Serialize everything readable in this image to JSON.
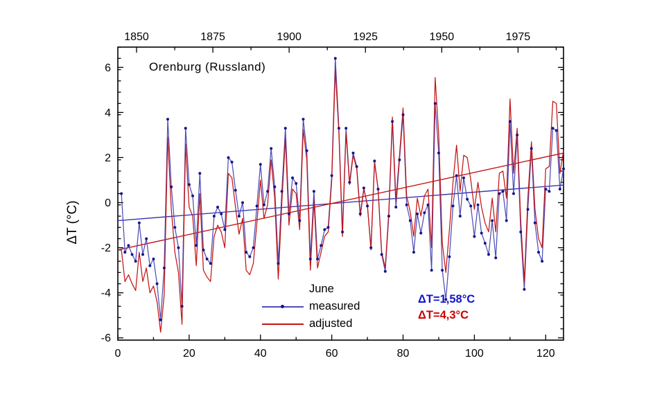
{
  "chart_data": {
    "type": "line",
    "title": "Orenburg (Russland)",
    "ylabel": "ΔT (°C)",
    "xlim": [
      0,
      125
    ],
    "ylim": [
      -6.1,
      6.9
    ],
    "grid": false,
    "x_ticks": [
      0,
      20,
      40,
      60,
      80,
      100,
      120
    ],
    "x_minor_step": 10,
    "y_ticks": [
      -6,
      -4,
      -2,
      0,
      2,
      4,
      6
    ],
    "y_major_step": 2,
    "y_minor_step": 0.5,
    "top_axis": {
      "label_years": [
        1850,
        1875,
        1900,
        1925,
        1950,
        1975
      ],
      "minor_step_years": 12.5,
      "index_of_1850": 5.25,
      "indices_per_year": 0.856
    },
    "x_start": 1,
    "series": [
      {
        "name": "measured",
        "color": "#4d4db8",
        "dot_color": "#15158c",
        "show_dots": true,
        "values": [
          0.4,
          -2.2,
          -1.9,
          -2.3,
          -2.6,
          -0.9,
          -2.3,
          -1.6,
          -2.8,
          -2.5,
          -3.6,
          -5.2,
          -2.9,
          3.7,
          0.7,
          -1.1,
          -2.0,
          -4.6,
          3.3,
          0.8,
          0.3,
          -1.9,
          1.3,
          -2.1,
          -2.5,
          -2.7,
          -0.6,
          -0.2,
          -0.5,
          -1.2,
          2.0,
          1.8,
          0.55,
          -0.6,
          0.0,
          -2.2,
          -2.4,
          -2.0,
          -0.15,
          1.7,
          -0.1,
          0.5,
          2.4,
          0.7,
          -2.7,
          0.5,
          3.3,
          -0.5,
          1.1,
          0.85,
          -0.8,
          3.7,
          2.3,
          -2.5,
          0.5,
          -2.5,
          -1.9,
          -1.2,
          -1.1,
          1.2,
          6.4,
          3.3,
          -1.3,
          3.3,
          0.9,
          2.2,
          1.6,
          -0.5,
          0.65,
          -0.15,
          -2.0,
          1.85,
          0.6,
          -2.3,
          -3.05,
          -0.6,
          3.6,
          -0.2,
          1.9,
          3.9,
          -0.1,
          -0.8,
          -2.2,
          -0.5,
          -1.35,
          -0.45,
          -0.1,
          -3.0,
          4.4,
          2.2,
          -3.0,
          -4.3,
          -2.4,
          -0.15,
          1.2,
          -0.6,
          1.1,
          0.15,
          -0.15,
          -1.5,
          -0.1,
          -1.35,
          -1.8,
          -2.3,
          -0.8,
          -2.45,
          0.4,
          0.5,
          -0.8,
          3.6,
          0.4,
          3.0,
          -1.3,
          -3.85,
          -0.3,
          2.4,
          -0.9,
          -2.2,
          -2.6,
          0.6,
          0.5,
          3.3,
          3.2,
          0.6,
          1.5
        ]
      },
      {
        "name": "adjusted",
        "color": "#c41414",
        "show_dots": false,
        "values": [
          -2.1,
          -3.5,
          -3.2,
          -3.6,
          -3.9,
          -2.2,
          -3.5,
          -2.9,
          -4.0,
          -3.7,
          -4.4,
          -5.75,
          -4.1,
          2.9,
          -0.3,
          -2.2,
          -3.1,
          -5.4,
          2.6,
          -0.2,
          -0.6,
          -2.8,
          0.4,
          -3.0,
          -3.3,
          -3.5,
          -1.5,
          -1.0,
          -1.3,
          -2.0,
          1.3,
          1.1,
          -0.2,
          -1.4,
          -0.7,
          -3.0,
          -3.2,
          -2.7,
          -0.9,
          1.0,
          -0.7,
          -0.1,
          1.9,
          0.2,
          -3.4,
          0.0,
          2.85,
          -1.0,
          0.6,
          0.4,
          -1.2,
          3.25,
          1.9,
          -3.0,
          0.1,
          -2.9,
          -2.2,
          -1.5,
          -1.3,
          1.0,
          5.9,
          3.1,
          -1.5,
          3.1,
          0.8,
          2.1,
          1.5,
          -0.6,
          0.6,
          -0.1,
          -2.1,
          1.8,
          0.6,
          -2.2,
          -2.9,
          -0.4,
          3.8,
          0.1,
          2.1,
          4.2,
          0.3,
          -0.4,
          -1.5,
          0.2,
          -0.6,
          0.3,
          0.6,
          -2.0,
          5.55,
          3.0,
          -1.8,
          -3.1,
          -1.2,
          0.9,
          2.55,
          0.5,
          2.1,
          2.0,
          1.0,
          -0.3,
          0.9,
          -0.2,
          -0.9,
          -1.3,
          0.2,
          -1.3,
          1.3,
          1.4,
          0.2,
          4.6,
          1.3,
          3.3,
          -0.8,
          -3.5,
          0.2,
          2.7,
          -0.3,
          -1.6,
          -2.0,
          1.5,
          1.6,
          4.5,
          4.4,
          1.3,
          2.3
        ]
      }
    ],
    "trend_lines": [
      {
        "series": "measured",
        "color": "#3838b0",
        "x": [
          0,
          125
        ],
        "y": [
          -0.8,
          0.78
        ]
      },
      {
        "series": "adjusted",
        "color": "#c41414",
        "x": [
          0,
          125
        ],
        "y": [
          -2.1,
          2.2
        ]
      }
    ],
    "legend": {
      "title": "June",
      "entries": [
        {
          "label": "measured",
          "marker": "line-with-dot"
        },
        {
          "label": "adjusted",
          "marker": "line"
        }
      ]
    },
    "annotations": [
      {
        "text": "ΔT=1,58°C",
        "color": "#1414cc",
        "series": "measured"
      },
      {
        "text": "ΔT=4,3°C",
        "color": "#cc0000",
        "series": "adjusted"
      }
    ],
    "axis_color": "#000000",
    "background": "#ffffff"
  }
}
